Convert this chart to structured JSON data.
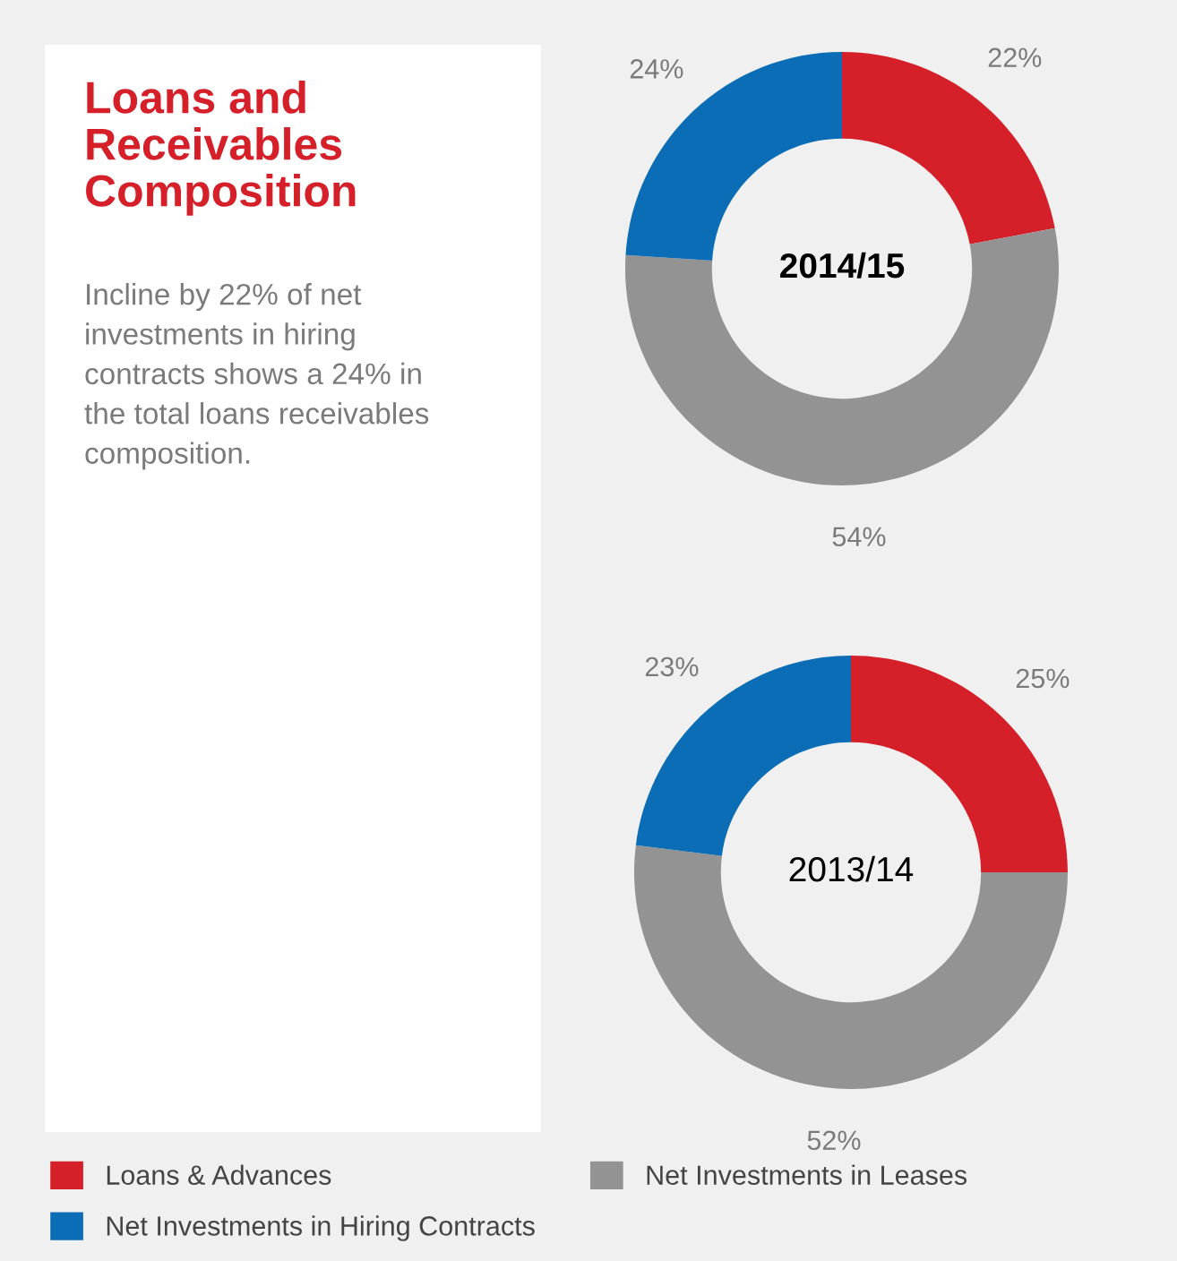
{
  "chart_data": [
    {
      "type": "other",
      "title": "Loans and\nReceivables\nComposition",
      "annotations": [
        "Incline by 22% of net\ninvestments in hiring\ncontracts shows a 24% in\nthe total loans receivables\ncomposition."
      ]
    },
    {
      "type": "donut",
      "title": "2014/15",
      "categories": [
        "Loans & Advances",
        "Net Investments in Leases",
        "Net Investments in Hiring Contracts"
      ],
      "values": [
        22,
        54,
        24
      ],
      "value_labels": [
        "22%",
        "54%",
        "24%"
      ],
      "colors": [
        "#d5202a",
        "#939393",
        "#0a6db6"
      ],
      "legend": "bottom"
    },
    {
      "type": "donut",
      "title": "2013/14",
      "categories": [
        null,
        null,
        null
      ],
      "values": [
        25,
        52,
        23
      ],
      "value_labels": [
        "25%",
        "52%",
        "23%"
      ],
      "colors": [
        "#d5202a",
        "#939393",
        "#0a6db6"
      ]
    }
  ]
}
